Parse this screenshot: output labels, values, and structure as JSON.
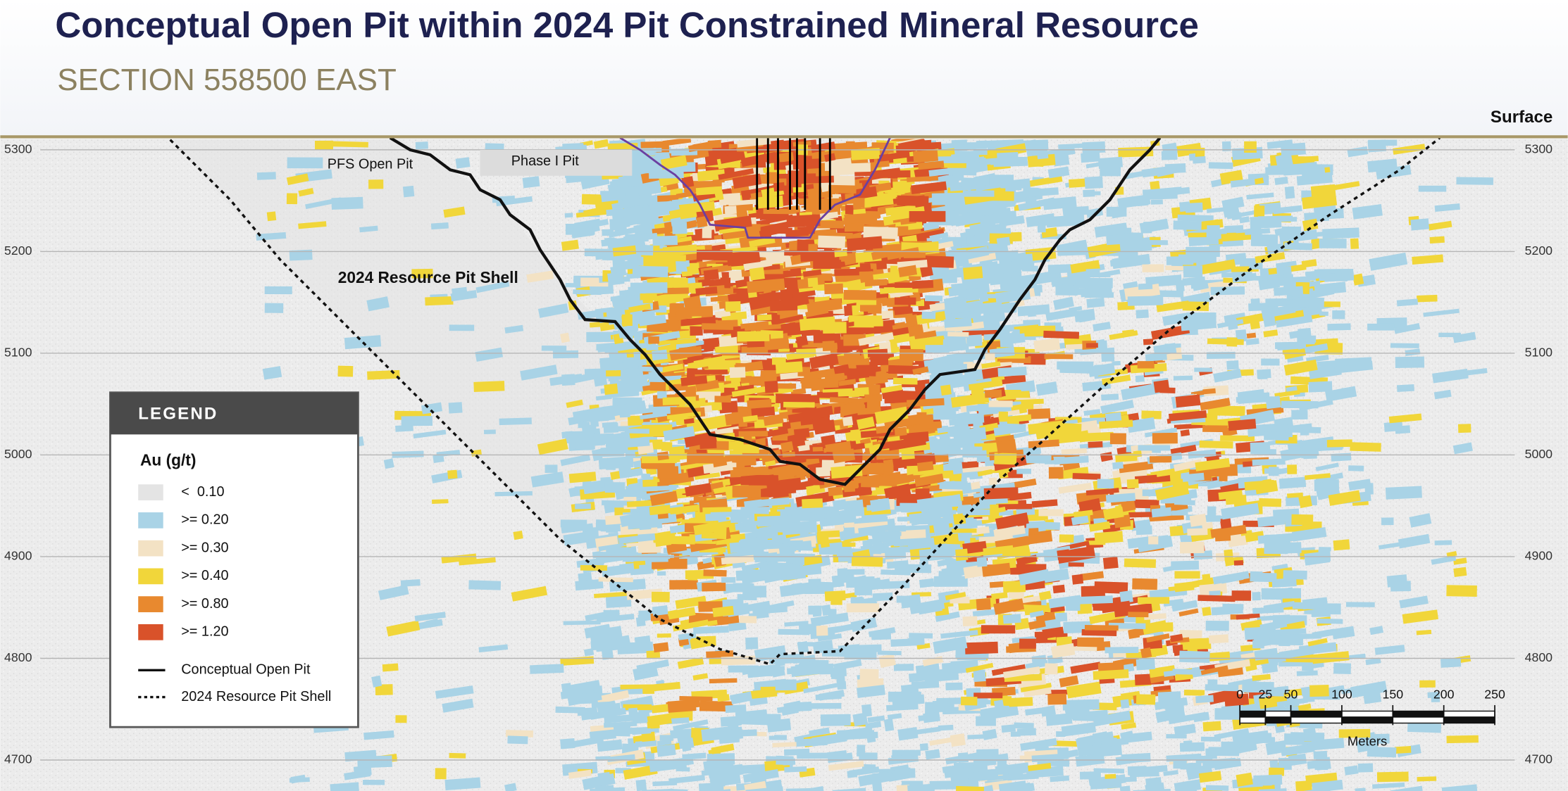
{
  "title": "Conceptual Open Pit within 2024 Pit Constrained Mineral Resource",
  "subtitle": "SECTION 558500 EAST",
  "surface_label": "Surface",
  "elevations": [
    5300,
    5200,
    5100,
    5000,
    4900,
    4800,
    4700
  ],
  "annotations": {
    "pfs_open_pit": "PFS Open Pit",
    "phase_i_pit": "Phase I Pit",
    "resource_pit_shell": "2024 Resource Pit Shell"
  },
  "legend": {
    "title": "LEGEND",
    "unit": "Au (g/t)",
    "grades": [
      {
        "label": "<  0.10",
        "color": "#e4e4e4"
      },
      {
        "label": ">= 0.20",
        "color": "#a9d3e6"
      },
      {
        "label": ">= 0.30",
        "color": "#f3e2c4"
      },
      {
        "label": ">= 0.40",
        "color": "#f1d63a"
      },
      {
        "label": ">= 0.80",
        "color": "#e8892f"
      },
      {
        "label": ">= 1.20",
        "color": "#d9522a"
      }
    ],
    "lines": [
      {
        "label": "Conceptual Open Pit"
      },
      {
        "label": "2024 Resource Pit Shell"
      }
    ]
  },
  "scale_bar": {
    "ticks": [
      0,
      25,
      50,
      100,
      150,
      200,
      250
    ],
    "unit": "Meters"
  }
}
